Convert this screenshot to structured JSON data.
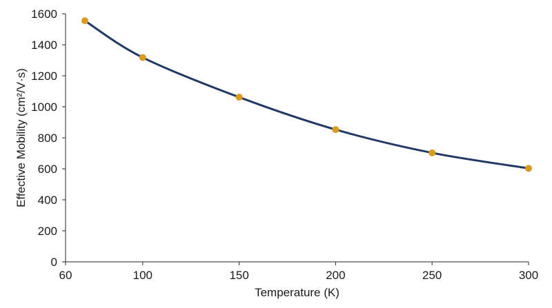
{
  "chart_data": {
    "type": "line",
    "title": "",
    "xlabel": "Temperature (K)",
    "ylabel": "Effective Mobility (cm²/V·s)",
    "xlim": [
      60,
      300
    ],
    "ylim": [
      0,
      1600
    ],
    "x_ticks": [
      60,
      100,
      150,
      200,
      250,
      300
    ],
    "y_ticks": [
      0,
      200,
      400,
      600,
      800,
      1000,
      1200,
      1400,
      1600
    ],
    "grid": false,
    "legend": "none",
    "series": [
      {
        "x": [
          70,
          100,
          150,
          200,
          250,
          300
        ],
        "y": [
          1555,
          1318,
          1062,
          853,
          703,
          603
        ],
        "line_color": "#1f3864",
        "marker_color": "#d99a1e",
        "smooth": true
      }
    ]
  }
}
